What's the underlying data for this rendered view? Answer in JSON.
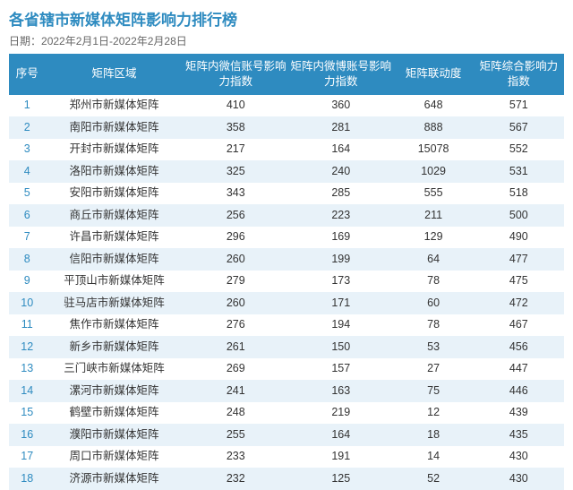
{
  "title": "各省辖市新媒体矩阵影响力排行榜",
  "title_color": "#2e8bc0",
  "date_label": "日期：",
  "date_range": "2022年2月1日-2022年2月28日",
  "date_color": "#666666",
  "header_bg": "#2e8bc0",
  "row_alt_bg": "#e8f2f9",
  "cell_text_color": "#333333",
  "rank_color": "#2e8bc0",
  "columns": [
    "序号",
    "矩阵区域",
    "矩阵内微信账号影响力指数",
    "矩阵内微博账号影响力指数",
    "矩阵联动度",
    "矩阵综合影响力指数"
  ],
  "rows": [
    {
      "rank": "1",
      "region": "郑州市新媒体矩阵",
      "wx": "410",
      "wb": "360",
      "link": "648",
      "comp": "571"
    },
    {
      "rank": "2",
      "region": "南阳市新媒体矩阵",
      "wx": "358",
      "wb": "281",
      "link": "888",
      "comp": "567"
    },
    {
      "rank": "3",
      "region": "开封市新媒体矩阵",
      "wx": "217",
      "wb": "164",
      "link": "15078",
      "comp": "552"
    },
    {
      "rank": "4",
      "region": "洛阳市新媒体矩阵",
      "wx": "325",
      "wb": "240",
      "link": "1029",
      "comp": "531"
    },
    {
      "rank": "5",
      "region": "安阳市新媒体矩阵",
      "wx": "343",
      "wb": "285",
      "link": "555",
      "comp": "518"
    },
    {
      "rank": "6",
      "region": "商丘市新媒体矩阵",
      "wx": "256",
      "wb": "223",
      "link": "211",
      "comp": "500"
    },
    {
      "rank": "7",
      "region": "许昌市新媒体矩阵",
      "wx": "296",
      "wb": "169",
      "link": "129",
      "comp": "490"
    },
    {
      "rank": "8",
      "region": "信阳市新媒体矩阵",
      "wx": "260",
      "wb": "199",
      "link": "64",
      "comp": "477"
    },
    {
      "rank": "9",
      "region": "平顶山市新媒体矩阵",
      "wx": "279",
      "wb": "173",
      "link": "78",
      "comp": "475"
    },
    {
      "rank": "10",
      "region": "驻马店市新媒体矩阵",
      "wx": "260",
      "wb": "171",
      "link": "60",
      "comp": "472"
    },
    {
      "rank": "11",
      "region": "焦作市新媒体矩阵",
      "wx": "276",
      "wb": "194",
      "link": "78",
      "comp": "467"
    },
    {
      "rank": "12",
      "region": "新乡市新媒体矩阵",
      "wx": "261",
      "wb": "150",
      "link": "53",
      "comp": "456"
    },
    {
      "rank": "13",
      "region": "三门峡市新媒体矩阵",
      "wx": "269",
      "wb": "157",
      "link": "27",
      "comp": "447"
    },
    {
      "rank": "14",
      "region": "漯河市新媒体矩阵",
      "wx": "241",
      "wb": "163",
      "link": "75",
      "comp": "446"
    },
    {
      "rank": "15",
      "region": "鹤壁市新媒体矩阵",
      "wx": "248",
      "wb": "219",
      "link": "12",
      "comp": "439"
    },
    {
      "rank": "16",
      "region": "濮阳市新媒体矩阵",
      "wx": "255",
      "wb": "164",
      "link": "18",
      "comp": "435"
    },
    {
      "rank": "17",
      "region": "周口市新媒体矩阵",
      "wx": "233",
      "wb": "191",
      "link": "14",
      "comp": "430"
    },
    {
      "rank": "18",
      "region": "济源市新媒体矩阵",
      "wx": "232",
      "wb": "125",
      "link": "52",
      "comp": "430"
    }
  ]
}
